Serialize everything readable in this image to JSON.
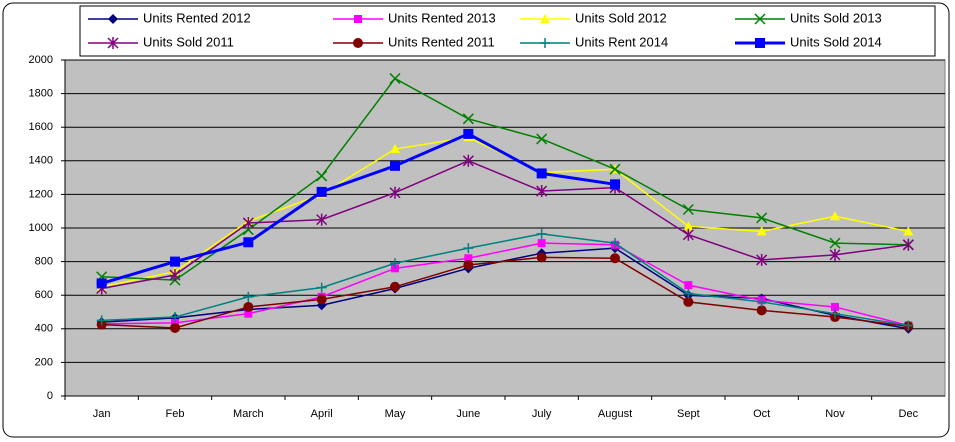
{
  "chart_data": {
    "type": "line",
    "categories": [
      "Jan",
      "Feb",
      "March",
      "April",
      "May",
      "June",
      "July",
      "August",
      "Sept",
      "Oct",
      "Nov",
      "Dec"
    ],
    "ylim": [
      0,
      2000
    ],
    "yticks": [
      0,
      200,
      400,
      600,
      800,
      1000,
      1200,
      1400,
      1600,
      1800,
      2000
    ],
    "grid": true,
    "series": [
      {
        "name": "Units Rented 2012",
        "color": "#000080",
        "marker": "diamond",
        "values": [
          440,
          465,
          515,
          540,
          640,
          760,
          850,
          880,
          600,
          580,
          480,
          400
        ]
      },
      {
        "name": "Units Rented 2013",
        "color": "#ff00ff",
        "marker": "square",
        "values": [
          430,
          435,
          490,
          590,
          760,
          820,
          910,
          900,
          660,
          570,
          530,
          420
        ]
      },
      {
        "name": "Units Sold 2012",
        "color": "#ffff00",
        "marker": "triangle",
        "values": [
          650,
          740,
          1040,
          1200,
          1470,
          1540,
          1330,
          1350,
          1010,
          980,
          1070,
          980
        ]
      },
      {
        "name": "Units Sold 2013",
        "color": "#008000",
        "marker": "x",
        "values": [
          710,
          690,
          990,
          1310,
          1890,
          1650,
          1530,
          1350,
          1110,
          1060,
          910,
          900
        ]
      },
      {
        "name": "Units Sold 2011",
        "color": "#800080",
        "marker": "star",
        "values": [
          640,
          720,
          1030,
          1050,
          1210,
          1400,
          1220,
          1240,
          960,
          810,
          840,
          900
        ]
      },
      {
        "name": "Units Rented 2011",
        "color": "#800000",
        "marker": "circle",
        "values": [
          425,
          405,
          530,
          575,
          650,
          780,
          825,
          820,
          560,
          510,
          470,
          415
        ]
      },
      {
        "name": "Units Rent 2014",
        "color": "#008080",
        "marker": "plus",
        "values": [
          450,
          470,
          590,
          645,
          790,
          880,
          965,
          910,
          610,
          560,
          490,
          420
        ]
      },
      {
        "name": "Units Sold 2014",
        "color": "#0000ff",
        "marker": "bigsquare",
        "values": [
          670,
          800,
          915,
          1215,
          1370,
          1560,
          1325,
          1260,
          null,
          null,
          null,
          null
        ]
      }
    ]
  }
}
